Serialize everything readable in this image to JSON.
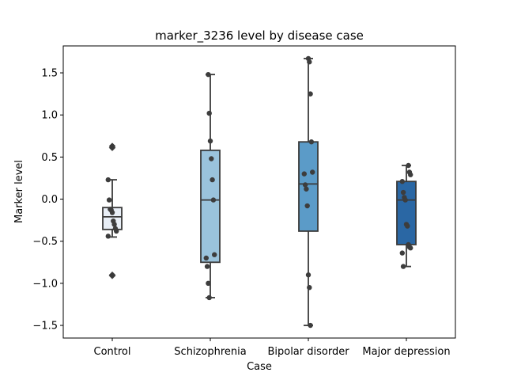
{
  "chart_data": {
    "type": "box",
    "title": "marker_3236 level by disease case",
    "xlabel": "Case",
    "ylabel": "Marker level",
    "ylim": [
      -1.65,
      1.82
    ],
    "yticks": [
      -1.5,
      -1.0,
      -0.5,
      0.0,
      0.5,
      1.0,
      1.5
    ],
    "ytick_labels": [
      "−1.5",
      "−1.0",
      "−0.5",
      "0.0",
      "0.5",
      "1.0",
      "1.5"
    ],
    "grid": false,
    "categories": [
      "Control",
      "Schizophrenia",
      "Bipolar disorder",
      "Major depression"
    ],
    "colors": [
      "#e8eef6",
      "#9ac3dc",
      "#5b9bc8",
      "#2a67a4"
    ],
    "outline_color": "#3a3a3a",
    "point_color": "#3d3d3d",
    "boxes": [
      {
        "q1": -0.36,
        "median": -0.21,
        "q3": -0.1,
        "whisker_low": -0.45,
        "whisker_high": 0.23
      },
      {
        "q1": -0.75,
        "median": -0.01,
        "q3": 0.58,
        "whisker_low": -1.17,
        "whisker_high": 1.48
      },
      {
        "q1": -0.38,
        "median": 0.18,
        "q3": 0.68,
        "whisker_low": -1.5,
        "whisker_high": 1.67
      },
      {
        "q1": -0.54,
        "median": -0.01,
        "q3": 0.21,
        "whisker_low": -0.8,
        "whisker_high": 0.4
      }
    ],
    "outliers": [
      [
        0.63,
        0.61,
        -0.9,
        -0.91
      ],
      [],
      [],
      []
    ],
    "points": [
      [
        0.23,
        -0.01,
        -0.12,
        -0.13,
        -0.16,
        -0.26,
        -0.3,
        -0.35,
        -0.38,
        -0.44
      ],
      [
        1.48,
        1.02,
        0.69,
        0.48,
        0.23,
        -0.01,
        -0.66,
        -0.7,
        -0.8,
        -1.0,
        -1.17
      ],
      [
        1.67,
        1.63,
        1.25,
        0.68,
        0.32,
        0.3,
        0.17,
        0.12,
        -0.08,
        -0.9,
        -1.05,
        -1.5
      ],
      [
        0.4,
        0.32,
        0.29,
        0.21,
        0.08,
        0.02,
        -0.01,
        -0.3,
        -0.32,
        -0.54,
        -0.57,
        -0.58,
        -0.64,
        -0.8
      ]
    ]
  }
}
